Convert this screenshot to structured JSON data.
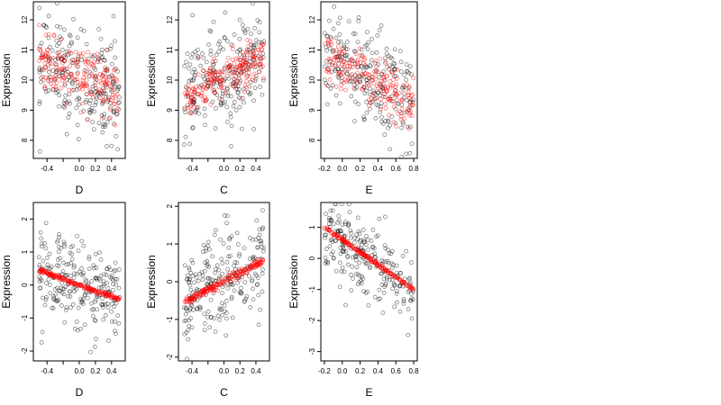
{
  "style": {
    "observed_color": "#000000",
    "fitted_color": "#ff0000"
  },
  "chart_data": [
    {
      "type": "scatter",
      "row": 1,
      "col": 1,
      "xlabel": "D",
      "ylabel": "Expression",
      "xlim": [
        -0.57,
        0.57
      ],
      "ylim": [
        7.4,
        12.6
      ],
      "xticks": [
        -0.4,
        -0.2,
        0.0,
        0.2,
        0.4
      ],
      "xtick_labels": [
        "-0.4",
        "",
        "0.0",
        "0.2",
        "0.4"
      ],
      "yticks": [
        8,
        9,
        10,
        11,
        12
      ],
      "ytick_labels": [
        "8",
        "9",
        "10",
        "11",
        "12"
      ],
      "series": [
        {
          "role": "observed",
          "x_range": [
            -0.5,
            0.5
          ],
          "y_center": 10.1,
          "y_spread": 0.85,
          "slope": -1.0,
          "n": 240
        },
        {
          "role": "fitted",
          "x_range": [
            -0.5,
            0.5
          ],
          "y_center": 10.1,
          "y_spread": 0.45,
          "slope": -1.0,
          "n": 200
        }
      ]
    },
    {
      "type": "scatter",
      "row": 1,
      "col": 2,
      "xlabel": "C",
      "ylabel": "Expression",
      "xlim": [
        -0.57,
        0.57
      ],
      "ylim": [
        7.4,
        12.6
      ],
      "xticks": [
        -0.4,
        -0.2,
        0.0,
        0.2,
        0.4
      ],
      "xtick_labels": [
        "-0.4",
        "",
        "0.0",
        "0.2",
        "0.4"
      ],
      "yticks": [
        8,
        9,
        10,
        11,
        12
      ],
      "ytick_labels": [
        "8",
        "9",
        "10",
        "11",
        "12"
      ],
      "series": [
        {
          "role": "observed",
          "x_range": [
            -0.5,
            0.5
          ],
          "y_center": 10.1,
          "y_spread": 0.85,
          "slope": 1.4,
          "n": 240
        },
        {
          "role": "fitted",
          "x_range": [
            -0.5,
            0.5
          ],
          "y_center": 10.1,
          "y_spread": 0.35,
          "slope": 1.4,
          "n": 200
        }
      ]
    },
    {
      "type": "scatter",
      "row": 1,
      "col": 3,
      "xlabel": "E",
      "ylabel": "Expression",
      "xlim": [
        -0.24,
        0.84
      ],
      "ylim": [
        7.4,
        12.6
      ],
      "xticks": [
        -0.2,
        0.0,
        0.2,
        0.4,
        0.6,
        0.8
      ],
      "xtick_labels": [
        "-0.2",
        "0.0",
        "0.2",
        "0.4",
        "0.6",
        "0.8"
      ],
      "yticks": [
        8,
        9,
        10,
        11,
        12
      ],
      "ytick_labels": [
        "8",
        "9",
        "10",
        "11",
        "12"
      ],
      "series": [
        {
          "role": "observed",
          "x_range": [
            -0.2,
            0.8
          ],
          "y_center": 10.0,
          "y_spread": 0.85,
          "slope": -1.6,
          "n": 240
        },
        {
          "role": "fitted",
          "x_range": [
            -0.2,
            0.8
          ],
          "y_center": 10.0,
          "y_spread": 0.4,
          "slope": -1.6,
          "n": 200
        }
      ]
    },
    {
      "type": "scatter",
      "row": 2,
      "col": 1,
      "xlabel": "D",
      "ylabel": "Expression",
      "xlim": [
        -0.57,
        0.57
      ],
      "ylim": [
        -2.3,
        2.5
      ],
      "xticks": [
        -0.4,
        -0.2,
        0.0,
        0.2,
        0.4
      ],
      "xtick_labels": [
        "-0.4",
        "",
        "0.0",
        "0.2",
        "0.4"
      ],
      "yticks": [
        -2,
        -1,
        0,
        1,
        2
      ],
      "ytick_labels": [
        "-2",
        "-1",
        "0",
        "1",
        "2"
      ],
      "series": [
        {
          "role": "observed",
          "x_range": [
            -0.5,
            0.5
          ],
          "y_center": 0.0,
          "y_spread": 0.65,
          "slope": -0.9,
          "n": 240
        },
        {
          "role": "fitted",
          "x_range": [
            -0.5,
            0.5
          ],
          "y_center": 0.0,
          "y_spread": 0.03,
          "slope": -0.9,
          "n": 200
        }
      ]
    },
    {
      "type": "scatter",
      "row": 2,
      "col": 2,
      "xlabel": "C",
      "ylabel": "Expression",
      "xlim": [
        -0.57,
        0.57
      ],
      "ylim": [
        -2.1,
        2.1
      ],
      "xticks": [
        -0.4,
        -0.2,
        0.0,
        0.2,
        0.4
      ],
      "xtick_labels": [
        "-0.4",
        "",
        "0.0",
        "0.2",
        "0.4"
      ],
      "yticks": [
        -2,
        -1,
        0,
        1,
        2
      ],
      "ytick_labels": [
        "-2",
        "-1",
        "0",
        "1",
        "2"
      ],
      "series": [
        {
          "role": "observed",
          "x_range": [
            -0.5,
            0.5
          ],
          "y_center": 0.0,
          "y_spread": 0.7,
          "slope": 1.1,
          "n": 240
        },
        {
          "role": "fitted",
          "x_range": [
            -0.5,
            0.5
          ],
          "y_center": 0.0,
          "y_spread": 0.05,
          "slope": 1.1,
          "n": 200
        }
      ]
    },
    {
      "type": "scatter",
      "row": 2,
      "col": 3,
      "xlabel": "E",
      "ylabel": "Expression",
      "xlim": [
        -0.24,
        0.84
      ],
      "ylim": [
        -3.3,
        1.8
      ],
      "xticks": [
        -0.2,
        0.0,
        0.2,
        0.4,
        0.6,
        0.8
      ],
      "xtick_labels": [
        "-0.2",
        "0.0",
        "0.2",
        "0.4",
        "0.6",
        "0.8"
      ],
      "yticks": [
        -3,
        -2,
        -1,
        0,
        1
      ],
      "ytick_labels": [
        "-3",
        "-2",
        "-1",
        "0",
        "1"
      ],
      "series": [
        {
          "role": "observed",
          "x_range": [
            -0.2,
            0.8
          ],
          "y_center": 0.0,
          "y_spread": 0.6,
          "slope": -2.0,
          "n": 240
        },
        {
          "role": "fitted",
          "x_range": [
            -0.2,
            0.8
          ],
          "y_center": 0.0,
          "y_spread": 0.03,
          "slope": -2.0,
          "n": 200
        }
      ]
    }
  ]
}
